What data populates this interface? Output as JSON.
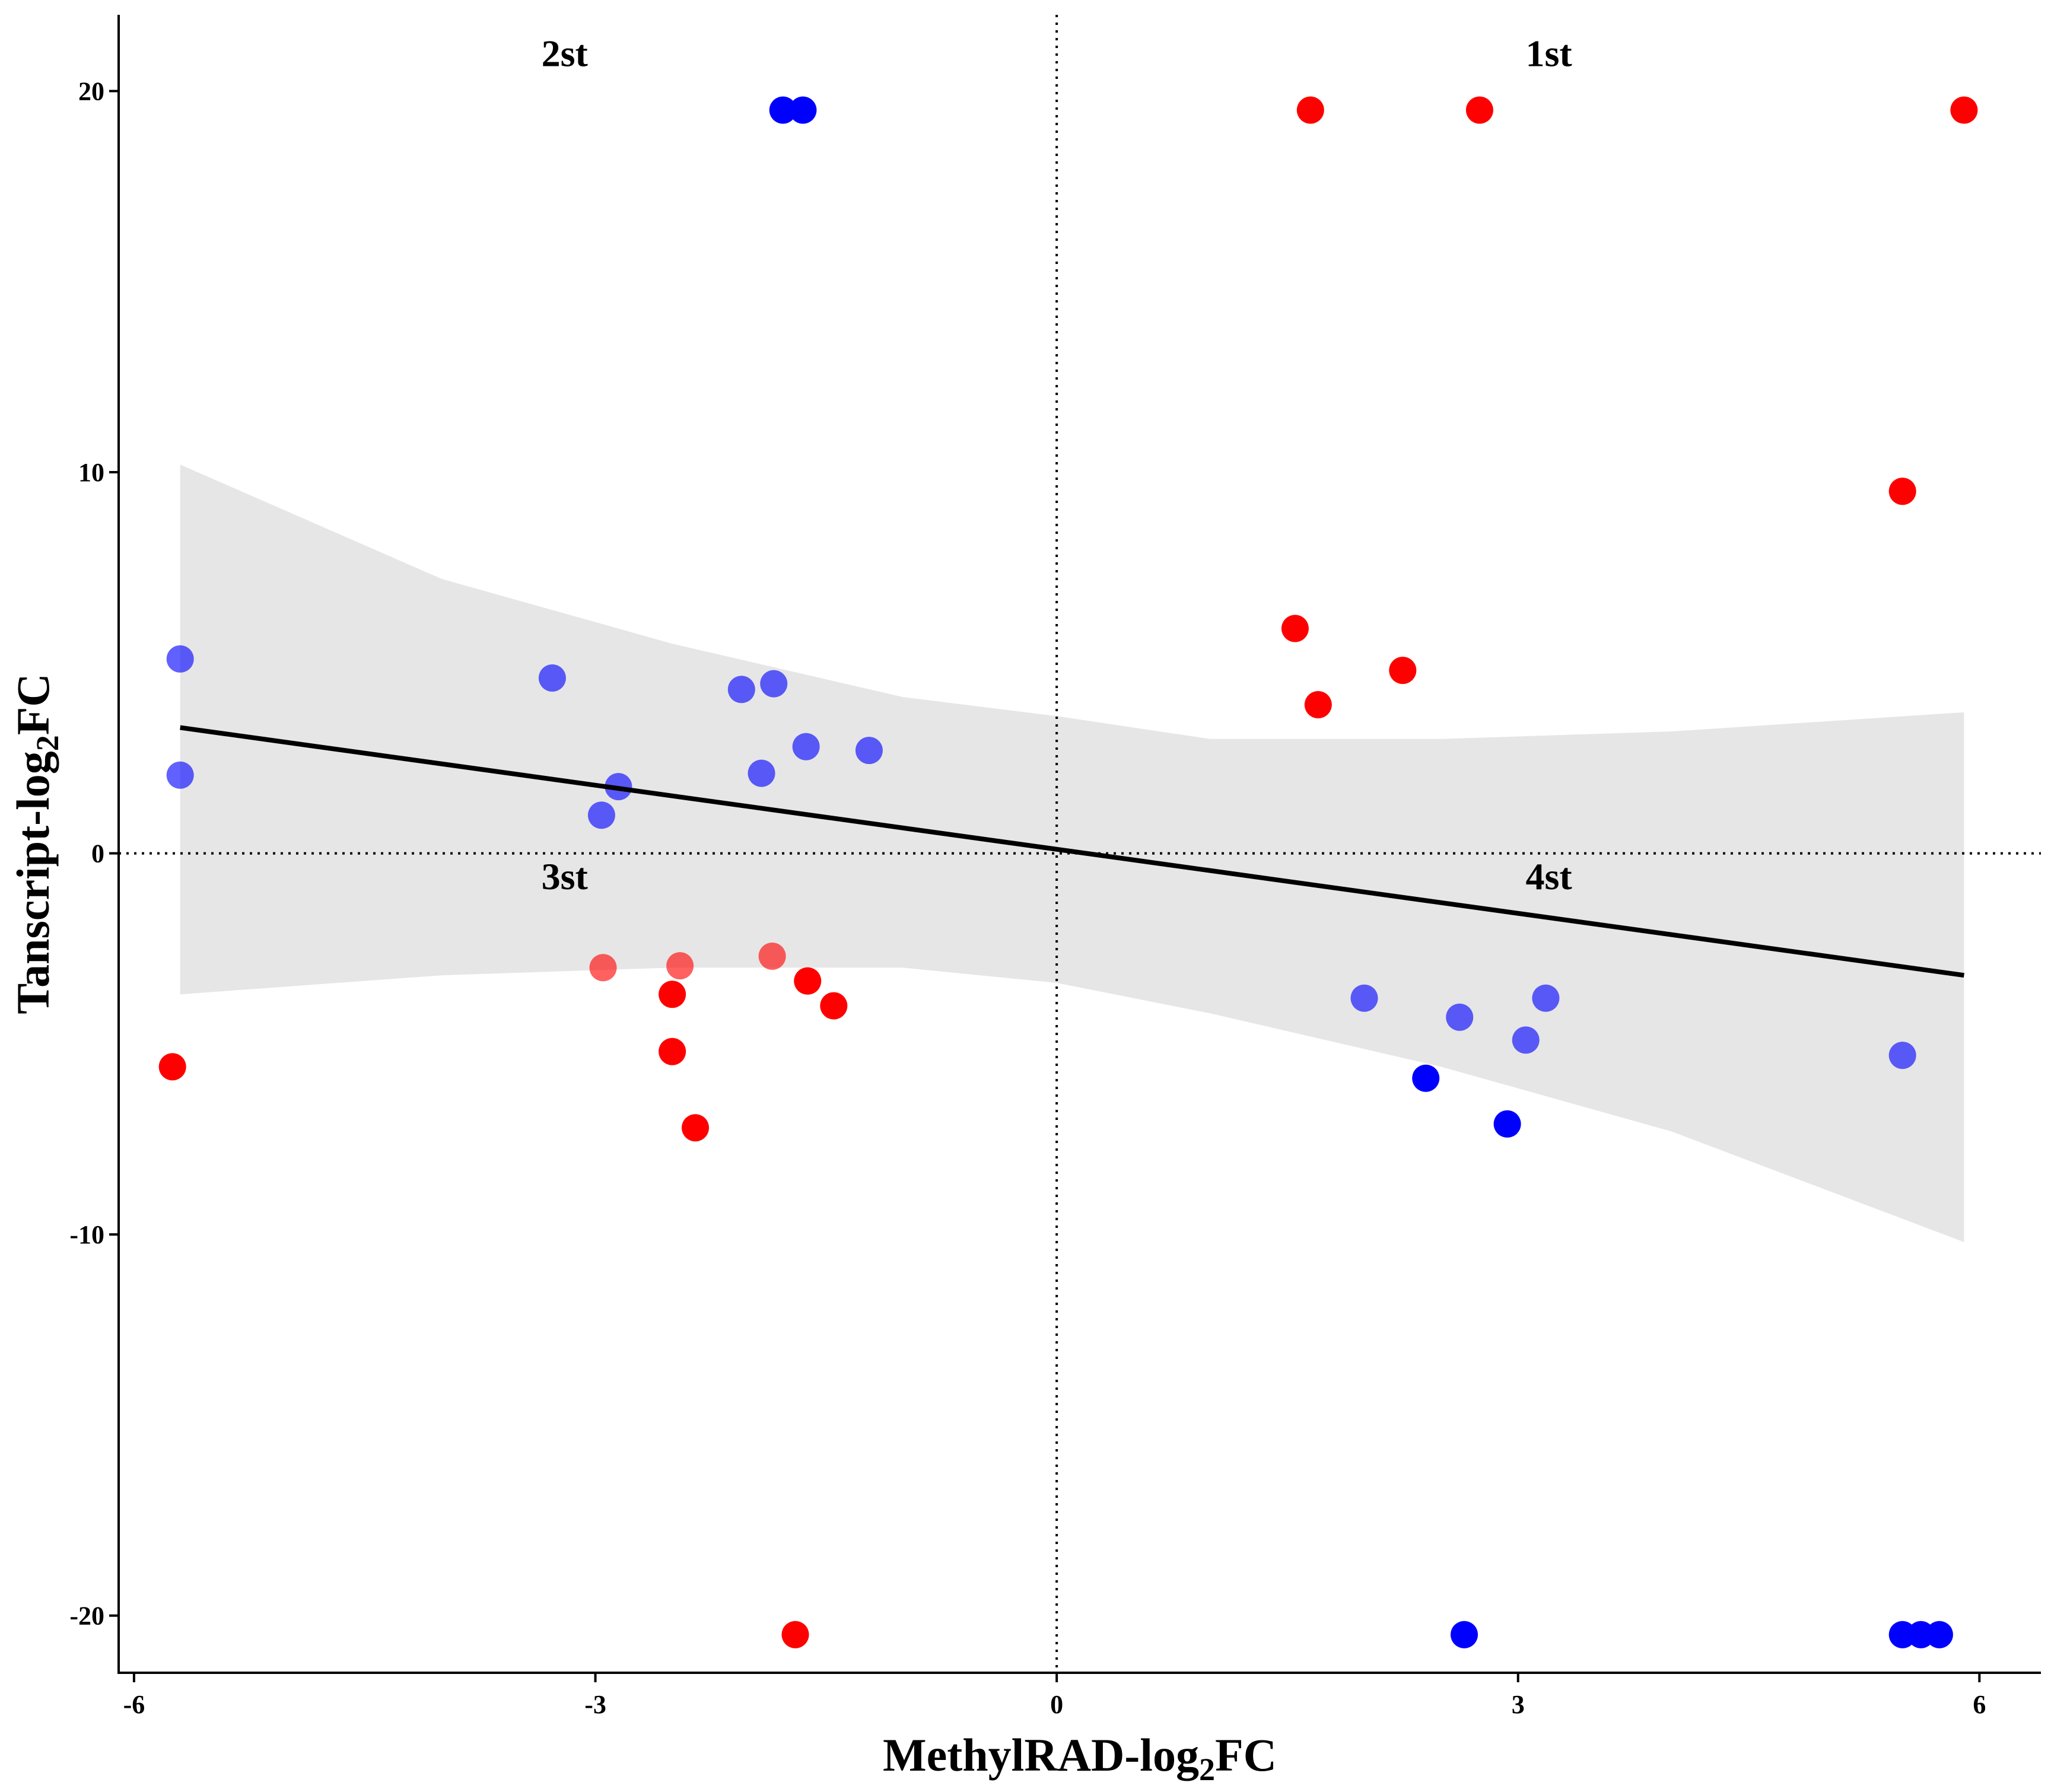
{
  "chart_data": {
    "type": "scatter",
    "title": "",
    "xlabel": {
      "main": "MethylRAD-log",
      "sub": "2",
      "suffix": "FC"
    },
    "ylabel": {
      "main": "Tanscript-log",
      "sub": "2",
      "suffix": "FC"
    },
    "xlim": [
      -6.1,
      6.4
    ],
    "ylim": [
      -21.5,
      22
    ],
    "x_ticks": [
      -6,
      -3,
      0,
      3,
      6
    ],
    "y_ticks": [
      20,
      10,
      0,
      -10,
      -20
    ],
    "x_tick_labels": [
      "-6",
      "-3",
      "0",
      "3",
      "6"
    ],
    "y_tick_labels": [
      "20",
      "10",
      "0",
      "-10",
      "-20"
    ],
    "grid": false,
    "reference_lines": {
      "x": 0,
      "y": 0,
      "style": "dotted"
    },
    "quadrant_labels": [
      {
        "text": "1st",
        "x": 3.2,
        "y": 21
      },
      {
        "text": "2st",
        "x": -3.2,
        "y": 21
      },
      {
        "text": "3st",
        "x": -3.2,
        "y": -0.6
      },
      {
        "text": "4st",
        "x": 3.2,
        "y": -0.6
      }
    ],
    "regression": {
      "x": [
        -5.7,
        5.9
      ],
      "y": [
        3.3,
        -3.2
      ],
      "band": {
        "x": [
          -5.7,
          -4,
          -2.5,
          -1,
          0,
          1,
          2.5,
          4,
          5.9
        ],
        "upper": [
          10.2,
          7.2,
          5.5,
          4.1,
          3.6,
          3.0,
          3.0,
          3.2,
          3.7
        ],
        "lower": [
          -3.7,
          -3.2,
          -3.0,
          -3.0,
          -3.4,
          -4.2,
          -5.6,
          -7.3,
          -10.2
        ]
      }
    },
    "colors": {
      "red": "#FF0000",
      "blue": "#0000FF",
      "line": "#000000",
      "band": "#E6E6E6"
    },
    "series": [
      {
        "name": "red",
        "color": "#FF0000",
        "points": [
          {
            "x": 1.65,
            "y": 19.5
          },
          {
            "x": 2.75,
            "y": 19.5
          },
          {
            "x": 5.9,
            "y": 19.5
          },
          {
            "x": 5.5,
            "y": 9.5
          },
          {
            "x": 1.55,
            "y": 5.9
          },
          {
            "x": 2.25,
            "y": 4.8
          },
          {
            "x": 1.7,
            "y": 3.9
          },
          {
            "x": -2.95,
            "y": -3.0
          },
          {
            "x": -2.45,
            "y": -2.95
          },
          {
            "x": -1.85,
            "y": -2.7
          },
          {
            "x": -2.5,
            "y": -3.7
          },
          {
            "x": -1.62,
            "y": -3.35
          },
          {
            "x": -1.45,
            "y": -4.0
          },
          {
            "x": -2.5,
            "y": -5.2
          },
          {
            "x": -2.35,
            "y": -7.2
          },
          {
            "x": -5.75,
            "y": -5.6
          },
          {
            "x": -1.7,
            "y": -20.5
          }
        ]
      },
      {
        "name": "blue",
        "color": "#0000FF",
        "points": [
          {
            "x": -1.78,
            "y": 19.5
          },
          {
            "x": -1.65,
            "y": 19.5
          },
          {
            "x": -5.7,
            "y": 5.1
          },
          {
            "x": -3.28,
            "y": 4.6
          },
          {
            "x": -2.05,
            "y": 4.3
          },
          {
            "x": -1.84,
            "y": 4.45
          },
          {
            "x": -1.63,
            "y": 2.8
          },
          {
            "x": -1.22,
            "y": 2.7
          },
          {
            "x": -5.7,
            "y": 2.05
          },
          {
            "x": -1.92,
            "y": 2.1
          },
          {
            "x": -2.85,
            "y": 1.75
          },
          {
            "x": -2.96,
            "y": 1.0
          },
          {
            "x": 2.0,
            "y": -3.8
          },
          {
            "x": 3.18,
            "y": -3.8
          },
          {
            "x": 2.62,
            "y": -4.3
          },
          {
            "x": 3.05,
            "y": -4.9
          },
          {
            "x": 5.5,
            "y": -5.3
          },
          {
            "x": 2.4,
            "y": -5.9
          },
          {
            "x": 2.93,
            "y": -7.1
          },
          {
            "x": 2.65,
            "y": -20.5
          },
          {
            "x": 5.5,
            "y": -20.5
          },
          {
            "x": 5.62,
            "y": -20.5
          },
          {
            "x": 5.74,
            "y": -20.5
          }
        ]
      }
    ]
  }
}
